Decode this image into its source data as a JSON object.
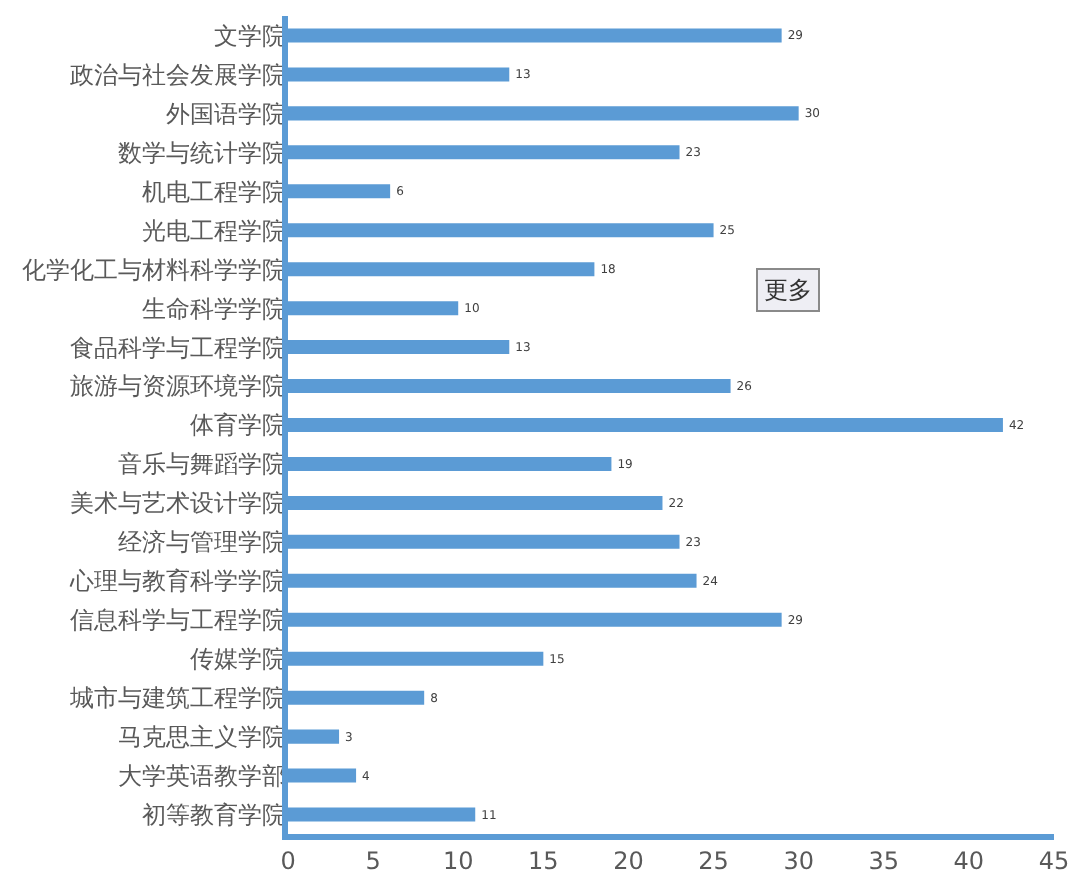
{
  "chart_data": {
    "type": "bar",
    "orientation": "horizontal",
    "categories": [
      "文学院",
      "政治与社会发展学院",
      "外国语学院",
      "数学与统计学院",
      "机电工程学院",
      "光电工程学院",
      "化学化工与材料科学学院",
      "生命科学学院",
      "食品科学与工程学院",
      "旅游与资源环境学院",
      "体育学院",
      "音乐与舞蹈学院",
      "美术与艺术设计学院",
      "经济与管理学院",
      "心理与教育科学学院",
      "信息科学与工程学院",
      "传媒学院",
      "城市与建筑工程学院",
      "马克思主义学院",
      "大学英语教学部",
      "初等教育学院"
    ],
    "values": [
      29,
      13,
      30,
      23,
      6,
      25,
      18,
      10,
      13,
      26,
      42,
      19,
      22,
      23,
      24,
      29,
      15,
      8,
      3,
      4,
      11
    ],
    "color": "#5b9bd5",
    "xlim": [
      0,
      45
    ],
    "xticks": [
      0,
      5,
      10,
      15,
      20,
      25,
      30,
      35,
      40,
      45
    ],
    "data_labels": true,
    "annotations": [
      "更多"
    ]
  }
}
